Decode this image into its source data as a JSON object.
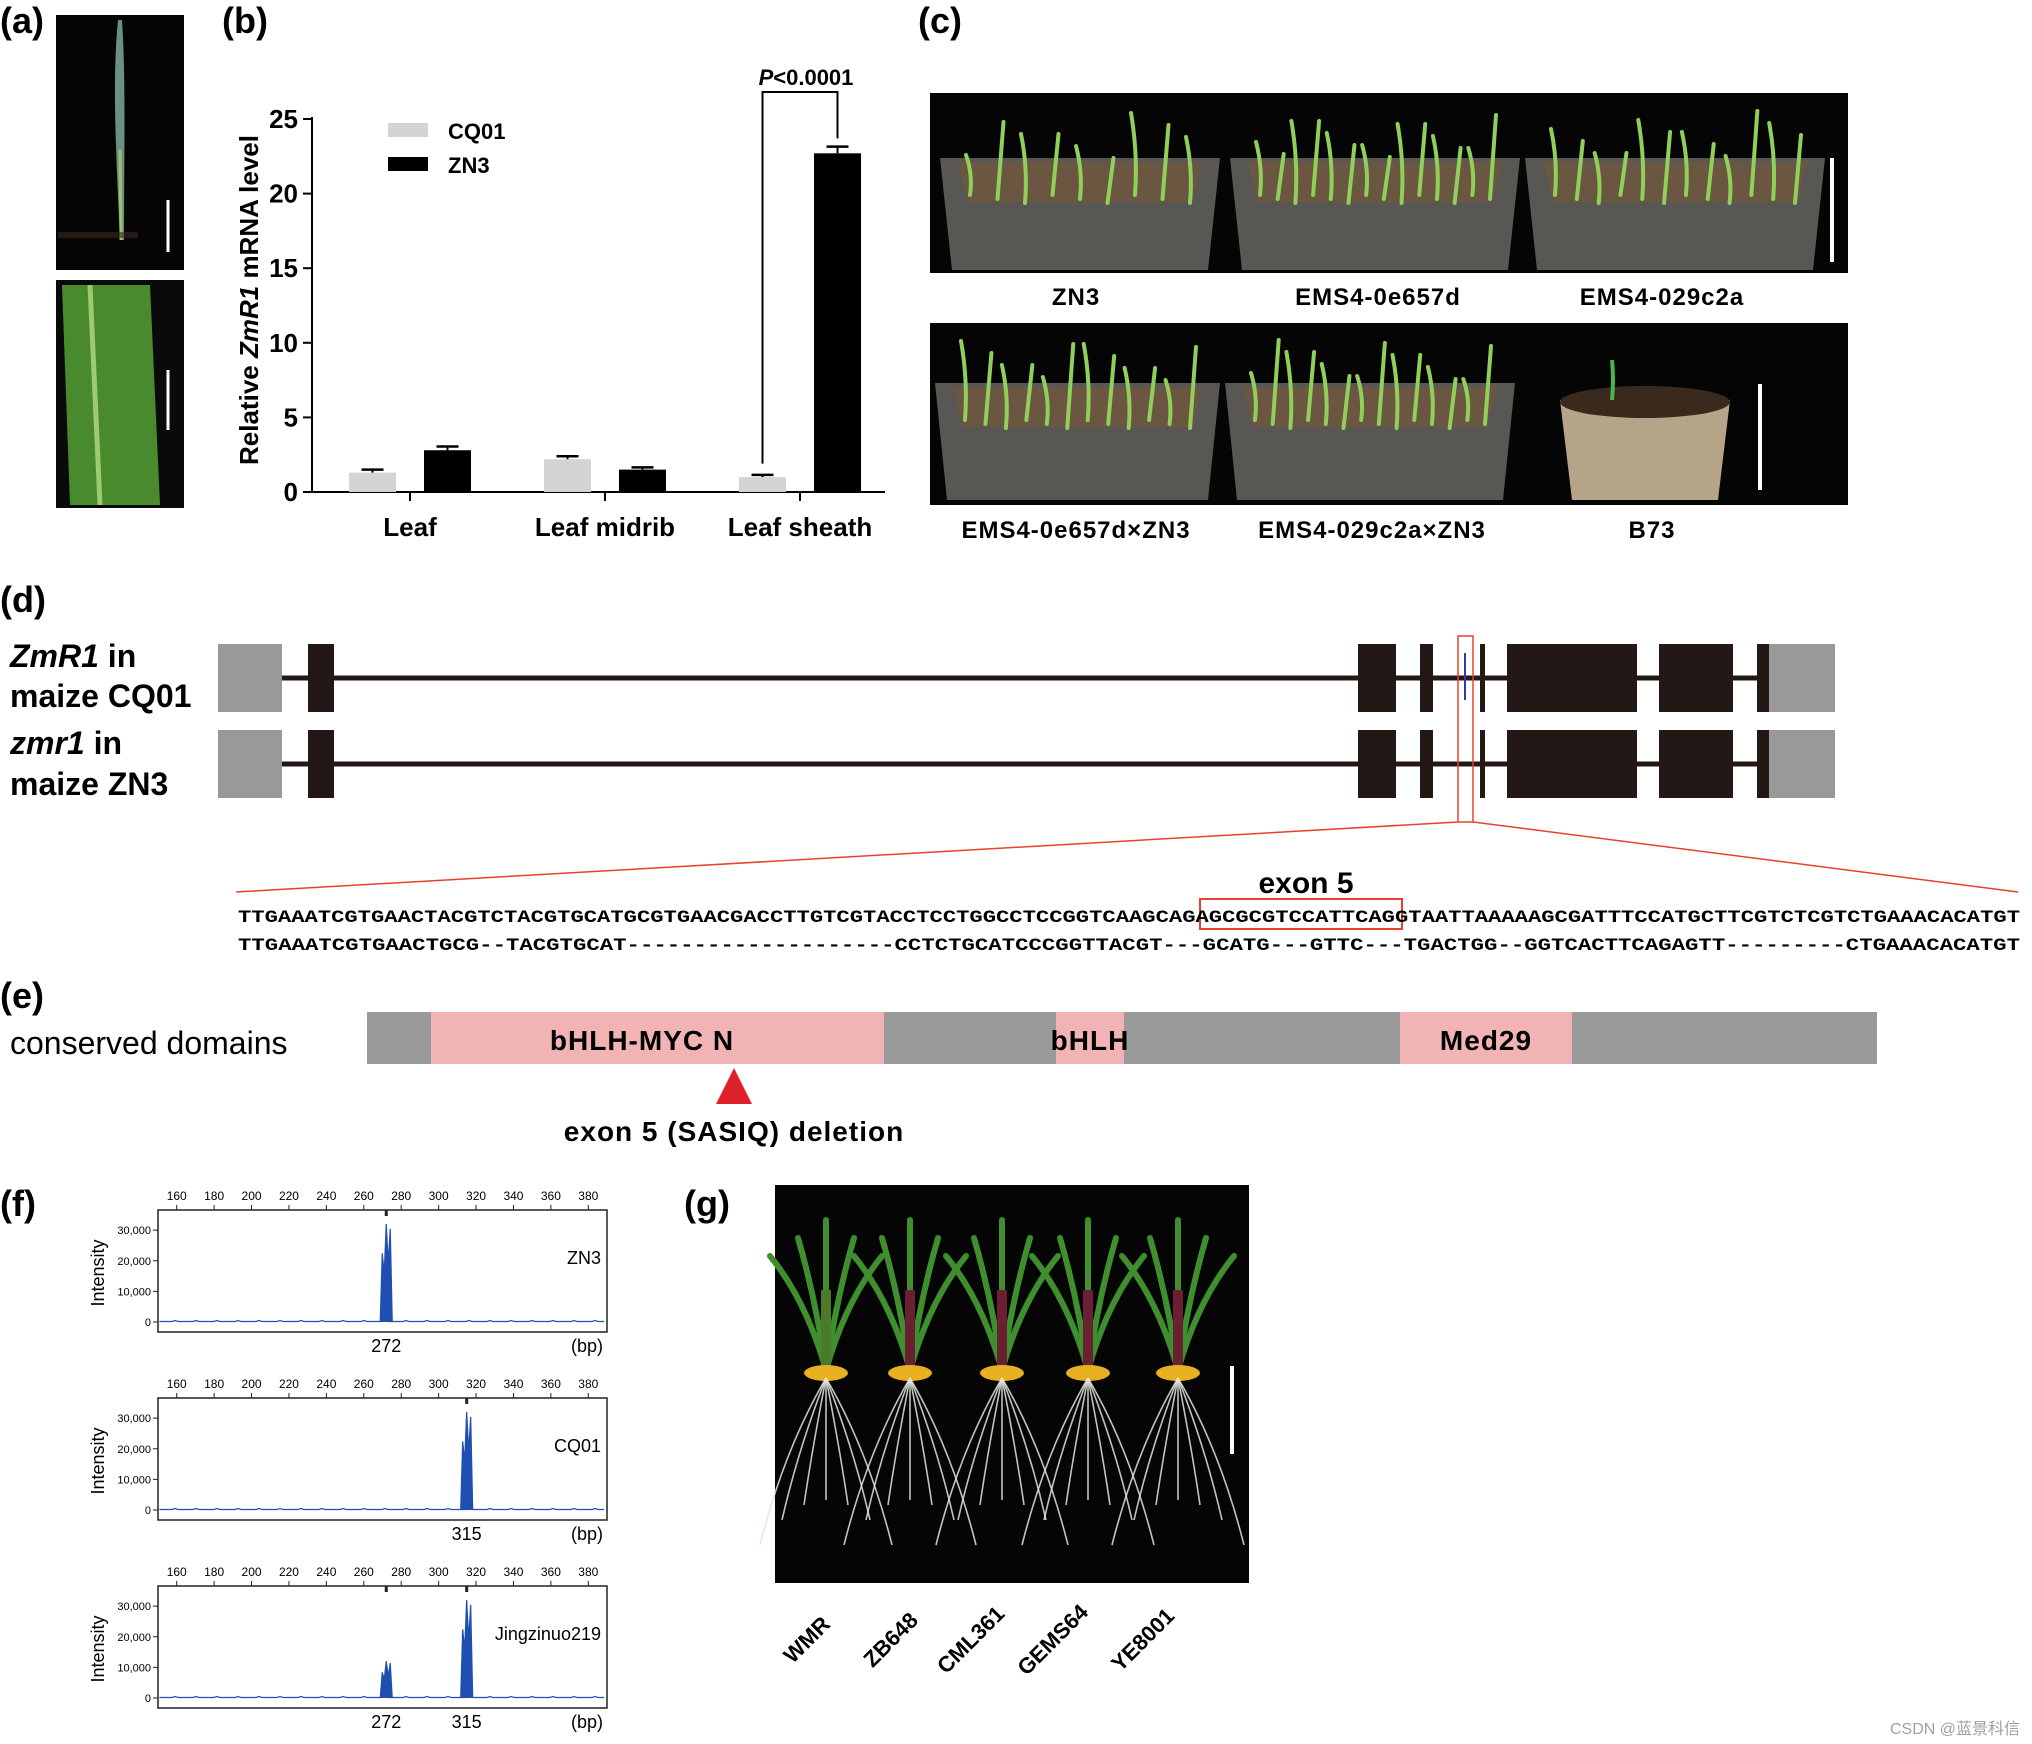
{
  "panels": {
    "a": {
      "label": "(a)"
    },
    "b": {
      "label": "(b)"
    },
    "c": {
      "label": "(c)"
    },
    "d": {
      "label": "(d)"
    },
    "e": {
      "label": "(e)"
    },
    "f": {
      "label": "(f)"
    },
    "g": {
      "label": "(g)"
    }
  },
  "panel_c": {
    "top_labels": [
      "ZN3",
      "EMS4-0e657d",
      "EMS4-029c2a"
    ],
    "bottom_labels": [
      "EMS4-0e657d×ZN3",
      "EMS4-029c2a×ZN3",
      "B73"
    ]
  },
  "panel_d": {
    "gene1_name": "ZmR1",
    "gene1_suffix": " in",
    "gene1_line2": "maize CQ01",
    "gene2_name": "zmr1",
    "gene2_suffix": " in",
    "gene2_line2": "maize ZN3",
    "exon_label": "exon 5",
    "seq_ref": "TTGAAATCGTGAACTACGTCTACGTGCATGCGTGAACGACCTTGTCGTACCTCCTGGCCTCCGGTCAAGCAGAGCGCGTCCATTCAGGTAATTAAAAAGCGATTTCCATGCTTCGTCTCGTCTGAAACACATGT",
    "seq_mut": "TTGAAATCGTGAACTGCG--TACGTGCAT--------------------CCTCTGCATCCCGGTTACGT---GCATG---GTTC---TGACTGG--GGTCACTTCAGAGTT---------CTGAAACACATGT"
  },
  "panel_e": {
    "title": "conserved domains",
    "domains": [
      "bHLH-MYC N",
      "bHLH",
      "Med29"
    ],
    "deletion_label": "exon 5 (SASIQ) deletion"
  },
  "panel_f": {
    "traces": [
      {
        "sample": "ZN3",
        "peaks_bp": [
          272
        ],
        "peak_labels": [
          "272"
        ]
      },
      {
        "sample": "CQ01",
        "peaks_bp": [
          315
        ],
        "peak_labels": [
          "315"
        ]
      },
      {
        "sample": "Jingzinuo219",
        "peaks_bp": [
          272,
          315
        ],
        "peak_labels": [
          "272",
          "315"
        ]
      }
    ],
    "unit_label": "(bp)",
    "ylabel": "Intensity",
    "x_ticks": [
      "160",
      "180",
      "200",
      "220",
      "240",
      "260",
      "280",
      "300",
      "320",
      "340",
      "360",
      "380"
    ],
    "y_ticks": [
      "0",
      "10,000",
      "20,000",
      "30,000"
    ]
  },
  "panel_g": {
    "labels": [
      "WMR",
      "ZB648",
      "CML361",
      "GEMS64",
      "YE8001"
    ]
  },
  "watermark": "CSDN @蓝景科信",
  "colors": {
    "bar_cq01": "#d4d4d4",
    "bar_zn3": "#000000",
    "exon_dark": "#231815",
    "utr_gray": "#999999",
    "zoom_red": "#e8412c",
    "domain_pink": "#f2b3b5",
    "domain_gray": "#9a9a9a",
    "trace_blue": "#1f4fb0",
    "triangle_red": "#e0202a"
  },
  "chart_data": {
    "type": "bar",
    "categories": [
      "Leaf",
      "Leaf midrib",
      "Leaf sheath"
    ],
    "series": [
      {
        "name": "CQ01",
        "values": [
          1.3,
          2.2,
          1.0
        ],
        "errors": [
          0.2,
          0.2,
          0.15
        ]
      },
      {
        "name": "ZN3",
        "values": [
          2.8,
          1.5,
          22.7
        ],
        "errors": [
          0.25,
          0.15,
          0.45
        ]
      }
    ],
    "ylabel_pre": "Relative ",
    "ylabel_gene": "ZmR1",
    "ylabel_post": " mRNA level",
    "ylim": [
      0,
      25
    ],
    "yticks": [
      0,
      5,
      10,
      15,
      20,
      25
    ],
    "significance_p": "P",
    "significance_rest": "<0.0001",
    "legend": "top-left"
  }
}
